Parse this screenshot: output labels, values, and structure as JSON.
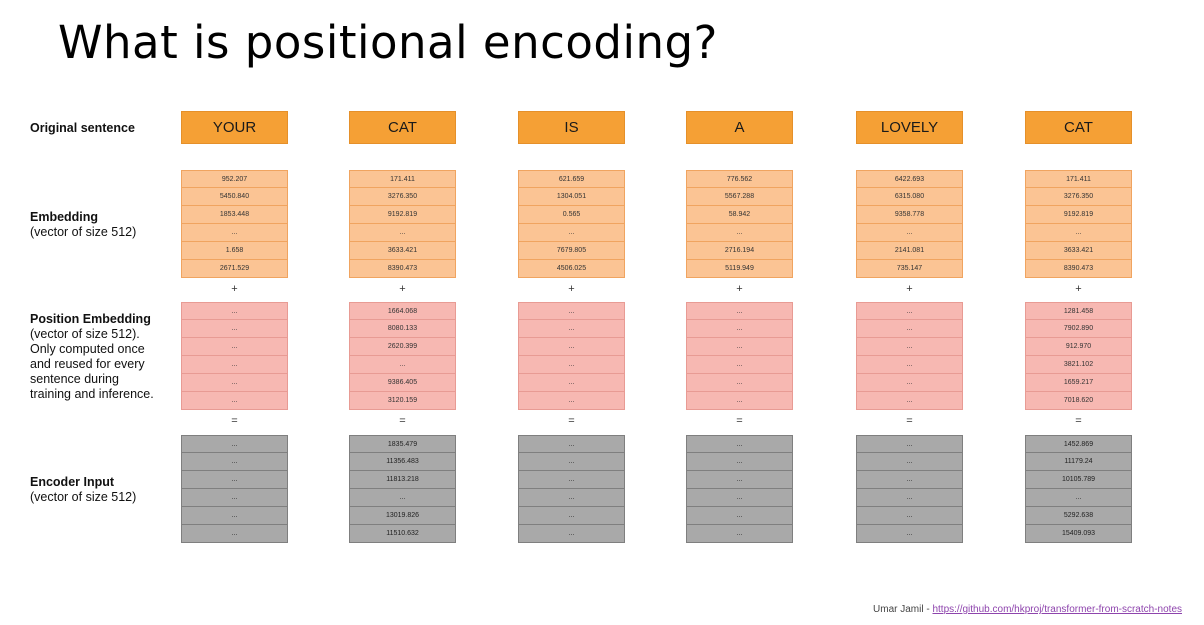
{
  "title": "What is positional encoding?",
  "labels": {
    "original": "Original sentence",
    "embedding_title": "Embedding",
    "embedding_sub": "(vector of size 512)",
    "position_title": "Position Embedding",
    "position_sub": [
      "(vector of size 512).",
      "Only computed once",
      "and reused for every",
      "sentence during",
      "training and inference."
    ],
    "encoder_title": "Encoder Input",
    "encoder_sub": "(vector of size 512)"
  },
  "operators": {
    "plus": "+",
    "equals": "="
  },
  "colors": {
    "word": "#f5a035",
    "embedding": "#fbc494",
    "position": "#f7b8b2",
    "encoder": "#a9a9a9"
  },
  "columns": [
    {
      "word": "YOUR",
      "embedding": [
        "952.207",
        "5450.840",
        "1853.448",
        "...",
        "1.658",
        "2671.529"
      ],
      "position": [
        "...",
        "...",
        "...",
        "...",
        "...",
        "..."
      ],
      "encoder": [
        "...",
        "...",
        "...",
        "...",
        "...",
        "..."
      ]
    },
    {
      "word": "CAT",
      "embedding": [
        "171.411",
        "3276.350",
        "9192.819",
        "...",
        "3633.421",
        "8390.473"
      ],
      "position": [
        "1664.068",
        "8080.133",
        "2620.399",
        "...",
        "9386.405",
        "3120.159"
      ],
      "encoder": [
        "1835.479",
        "11356.483",
        "11813.218",
        "...",
        "13019.826",
        "11510.632"
      ]
    },
    {
      "word": "IS",
      "embedding": [
        "621.659",
        "1304.051",
        "0.565",
        "...",
        "7679.805",
        "4506.025"
      ],
      "position": [
        "...",
        "...",
        "...",
        "...",
        "...",
        "..."
      ],
      "encoder": [
        "...",
        "...",
        "...",
        "...",
        "...",
        "..."
      ]
    },
    {
      "word": "A",
      "embedding": [
        "776.562",
        "5567.288",
        "58.942",
        "...",
        "2716.194",
        "5119.949"
      ],
      "position": [
        "...",
        "...",
        "...",
        "...",
        "...",
        "..."
      ],
      "encoder": [
        "...",
        "...",
        "...",
        "...",
        "...",
        "..."
      ]
    },
    {
      "word": "LOVELY",
      "embedding": [
        "6422.693",
        "6315.080",
        "9358.778",
        "...",
        "2141.081",
        "735.147"
      ],
      "position": [
        "...",
        "...",
        "...",
        "...",
        "...",
        "..."
      ],
      "encoder": [
        "...",
        "...",
        "...",
        "...",
        "...",
        "..."
      ]
    },
    {
      "word": "CAT",
      "embedding": [
        "171.411",
        "3276.350",
        "9192.819",
        "...",
        "3633.421",
        "8390.473"
      ],
      "position": [
        "1281.458",
        "7902.890",
        "912.970",
        "3821.102",
        "1659.217",
        "7018.620"
      ],
      "encoder": [
        "1452.869",
        "11179.24",
        "10105.789",
        "...",
        "5292.638",
        "15409.093"
      ]
    }
  ],
  "footer": {
    "author": "Umar Jamil - ",
    "link": "https://github.com/hkproj/transformer-from-scratch-notes"
  }
}
